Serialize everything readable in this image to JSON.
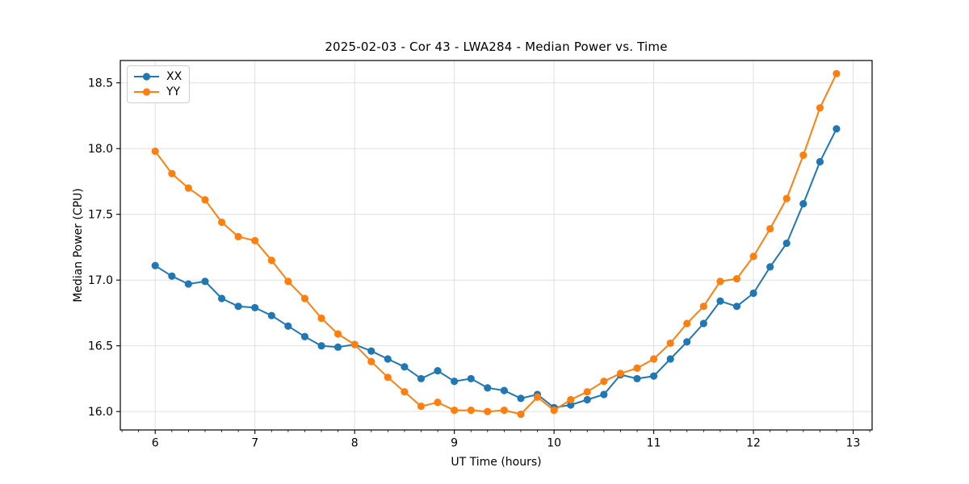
{
  "chart_data": {
    "type": "line",
    "title": "2025-02-03 - Cor 43 - LWA284 - Median Power vs. Time",
    "xlabel": "UT Time (hours)",
    "ylabel": "Median Power (CPU)",
    "xlim": [
      5.65,
      13.19
    ],
    "ylim": [
      15.86,
      18.67
    ],
    "xticks": [
      6,
      7,
      8,
      9,
      10,
      11,
      12,
      13
    ],
    "yticks": [
      16.0,
      16.5,
      17.0,
      17.5,
      18.0,
      18.5
    ],
    "ytick_labels": [
      "16.0",
      "16.5",
      "17.0",
      "17.5",
      "18.0",
      "18.5"
    ],
    "minor_xtick_step": 0.16667,
    "grid": true,
    "grid_color": "#e0e0e0",
    "legend_position": "upper-left",
    "marker": "circle",
    "x": [
      6.0,
      6.167,
      6.333,
      6.5,
      6.667,
      6.833,
      7.0,
      7.167,
      7.333,
      7.5,
      7.667,
      7.833,
      8.0,
      8.167,
      8.333,
      8.5,
      8.667,
      8.833,
      9.0,
      9.167,
      9.333,
      9.5,
      9.667,
      9.833,
      10.0,
      10.167,
      10.333,
      10.5,
      10.667,
      10.833,
      11.0,
      11.167,
      11.333,
      11.5,
      11.667,
      11.833,
      12.0,
      12.167,
      12.333,
      12.5,
      12.667,
      12.833
    ],
    "series": [
      {
        "name": "XX",
        "color": "#1f77b4",
        "values": [
          17.11,
          17.03,
          16.97,
          16.99,
          16.86,
          16.8,
          16.79,
          16.73,
          16.65,
          16.57,
          16.5,
          16.49,
          16.51,
          16.46,
          16.4,
          16.34,
          16.25,
          16.31,
          16.23,
          16.25,
          16.18,
          16.16,
          16.1,
          16.13,
          16.03,
          16.05,
          16.09,
          16.13,
          16.28,
          16.25,
          16.27,
          16.4,
          16.53,
          16.67,
          16.84,
          16.8,
          16.9,
          17.1,
          17.28,
          17.58,
          17.9,
          18.15
        ]
      },
      {
        "name": "YY",
        "color": "#ff7f0e",
        "values": [
          17.98,
          17.81,
          17.7,
          17.61,
          17.44,
          17.33,
          17.3,
          17.15,
          16.99,
          16.86,
          16.71,
          16.59,
          16.51,
          16.38,
          16.26,
          16.15,
          16.04,
          16.07,
          16.01,
          16.01,
          16.0,
          16.01,
          15.98,
          16.11,
          16.01,
          16.09,
          16.15,
          16.23,
          16.29,
          16.33,
          16.4,
          16.52,
          16.67,
          16.8,
          16.99,
          17.01,
          17.18,
          17.39,
          17.62,
          17.95,
          18.31,
          18.57
        ]
      }
    ]
  }
}
